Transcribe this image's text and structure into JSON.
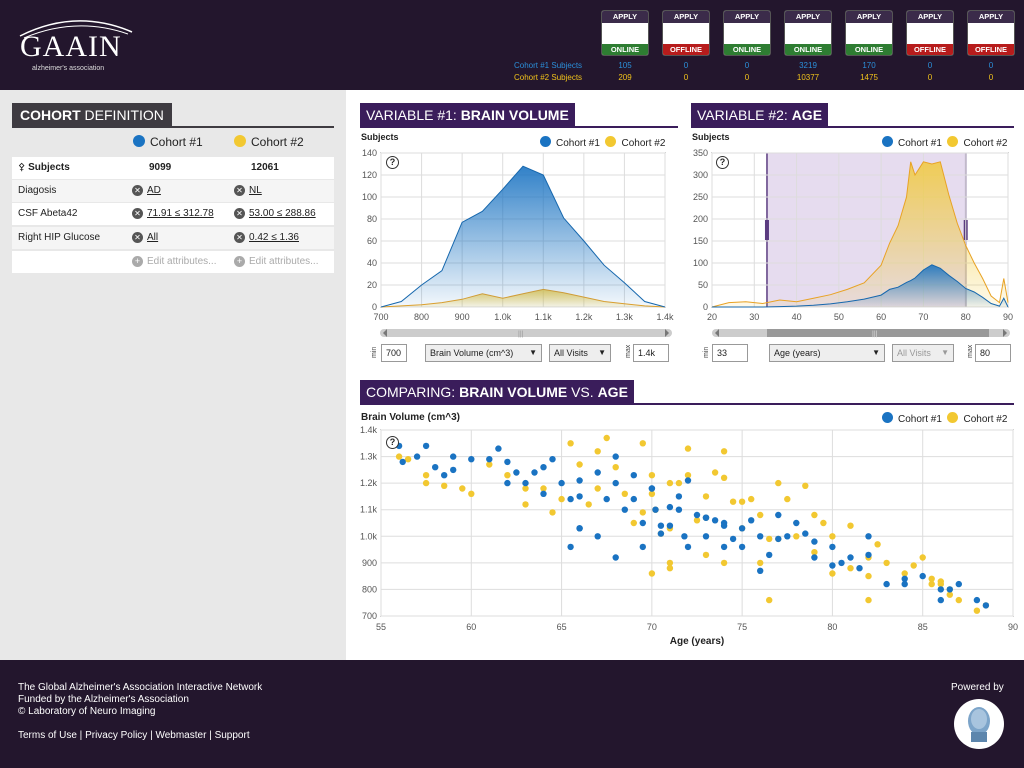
{
  "logo": {
    "title": "GAAIN",
    "sub": "alzheimer's association"
  },
  "databases": [
    {
      "apply": "APPLY",
      "status": "ONLINE",
      "online": true,
      "c1": "105",
      "c2": "209"
    },
    {
      "apply": "APPLY",
      "status": "OFFLINE",
      "online": false,
      "c1": "0",
      "c2": "0"
    },
    {
      "apply": "APPLY",
      "status": "ONLINE",
      "online": true,
      "c1": "0",
      "c2": "0"
    },
    {
      "apply": "APPLY",
      "status": "ONLINE",
      "online": true,
      "c1": "3219",
      "c2": "10377"
    },
    {
      "apply": "APPLY",
      "status": "ONLINE",
      "online": true,
      "c1": "170",
      "c2": "1475"
    },
    {
      "apply": "APPLY",
      "status": "OFFLINE",
      "online": false,
      "c1": "0",
      "c2": "0"
    },
    {
      "apply": "APPLY",
      "status": "OFFLINE",
      "online": false,
      "c1": "0",
      "c2": "0"
    }
  ],
  "header": {
    "c1_subjects": "Cohort #1 Subjects",
    "c2_subjects": "Cohort #2 Subjects"
  },
  "cohort_def": {
    "tab_bold": "COHORT",
    "tab_rest": " DEFINITION",
    "c1": "Cohort #1",
    "c2": "Cohort #2",
    "rows": [
      {
        "label": "Subjects",
        "v1": "9099",
        "v2": "12061"
      },
      {
        "label": "Diagosis",
        "v1": "AD",
        "v2": "NL"
      },
      {
        "label": "CSF Abeta42",
        "v1": "71.91 ≤ 312.78",
        "v2": "53.00 ≤ 288.86"
      },
      {
        "label": "Right HIP Glucose",
        "v1": "All",
        "v2": "0.42 ≤ 1.36"
      }
    ],
    "edit": "Edit attributes..."
  },
  "colors": {
    "c1": "#1a73c2",
    "c2": "#f2c831",
    "accent": "#3a1d5b"
  },
  "var1": {
    "tab_pre": "VARIABLE #1: ",
    "tab_bold": "BRAIN VOLUME",
    "ylabel": "Subjects",
    "c1": "Cohort #1",
    "c2": "Cohort #2",
    "min_lbl": "min",
    "max_lbl": "max",
    "min": "700",
    "max": "1.4k",
    "select": "Brain Volume (cm^3)",
    "visits": "All Visits",
    "xticks": [
      "700",
      "800",
      "900",
      "1.0k",
      "1.1k",
      "1.2k",
      "1.3k",
      "1.4k"
    ],
    "yticks": [
      "0",
      "20",
      "40",
      "60",
      "80",
      "100",
      "120",
      "140"
    ]
  },
  "var2": {
    "tab_pre": "VARIABLE #2: ",
    "tab_bold": "AGE",
    "ylabel": "Subjects",
    "c1": "Cohort #1",
    "c2": "Cohort #2",
    "min_lbl": "min",
    "max_lbl": "max",
    "min": "33",
    "max": "80",
    "select": "Age (years)",
    "visits": "All Visits",
    "xticks": [
      "20",
      "30",
      "40",
      "50",
      "60",
      "70",
      "80",
      "90"
    ],
    "yticks": [
      "0",
      "50",
      "100",
      "150",
      "200",
      "250",
      "300",
      "350"
    ]
  },
  "compare": {
    "tab_pre": "COMPARING: ",
    "tab_bold": "BRAIN VOLUME",
    "tab_mid": " VS. ",
    "tab_bold2": "AGE",
    "c1": "Cohort #1",
    "c2": "Cohort #2"
  },
  "chart_data": [
    {
      "type": "area",
      "title": "VARIABLE #1: BRAIN VOLUME",
      "ylabel": "Subjects",
      "xlim": [
        700,
        1400
      ],
      "ylim": [
        0,
        140
      ],
      "x": [
        700,
        750,
        800,
        850,
        900,
        950,
        1000,
        1050,
        1100,
        1150,
        1200,
        1250,
        1300,
        1350,
        1400
      ],
      "series": [
        {
          "name": "Cohort #1",
          "values": [
            0,
            5,
            20,
            33,
            77,
            87,
            107,
            128,
            120,
            81,
            60,
            38,
            22,
            5,
            0
          ]
        },
        {
          "name": "Cohort #2",
          "values": [
            0,
            1,
            2,
            4,
            7,
            12,
            8,
            12,
            16,
            13,
            9,
            5,
            3,
            1,
            0
          ]
        }
      ],
      "grid": true,
      "legend": "top-right"
    },
    {
      "type": "area",
      "title": "VARIABLE #2: AGE",
      "ylabel": "Subjects",
      "xlim": [
        20,
        90
      ],
      "ylim": [
        0,
        350
      ],
      "x": [
        20,
        24,
        28,
        32,
        36,
        40,
        44,
        48,
        52,
        56,
        60,
        62,
        64,
        66,
        67,
        68,
        70,
        72,
        74,
        76,
        78,
        80,
        82,
        84,
        86,
        88,
        89,
        90
      ],
      "series": [
        {
          "name": "Cohort #1",
          "values": [
            0,
            0,
            0,
            0,
            1,
            2,
            4,
            7,
            12,
            18,
            27,
            40,
            45,
            56,
            60,
            66,
            84,
            96,
            88,
            72,
            58,
            42,
            34,
            22,
            8,
            2,
            20,
            0
          ]
        },
        {
          "name": "Cohort #2",
          "values": [
            0,
            10,
            12,
            8,
            16,
            12,
            20,
            28,
            40,
            55,
            95,
            145,
            185,
            250,
            330,
            300,
            330,
            325,
            330,
            255,
            190,
            140,
            100,
            65,
            25,
            10,
            65,
            10
          ]
        }
      ],
      "range_selected": [
        33,
        80
      ],
      "grid": true,
      "legend": "top-right"
    },
    {
      "type": "scatter",
      "title": "COMPARING: BRAIN VOLUME VS. AGE",
      "xlabel": "Age (years)",
      "ylabel": "Brain Volume (cm^3)",
      "xlim": [
        55,
        90
      ],
      "ylim": [
        700,
        1400
      ],
      "series": [
        {
          "name": "Cohort #1",
          "points": [
            [
              56,
              1340
            ],
            [
              56.2,
              1280
            ],
            [
              57,
              1300
            ],
            [
              57.5,
              1340
            ],
            [
              58.5,
              1230
            ],
            [
              59,
              1250
            ],
            [
              59,
              1300
            ],
            [
              60,
              1290
            ],
            [
              61,
              1290
            ],
            [
              61.5,
              1330
            ],
            [
              62,
              1200
            ],
            [
              62.5,
              1240
            ],
            [
              63,
              1200
            ],
            [
              63.5,
              1240
            ],
            [
              64,
              1260
            ],
            [
              64.5,
              1290
            ],
            [
              65,
              1200
            ],
            [
              65.5,
              1140
            ],
            [
              66,
              1030
            ],
            [
              66,
              1210
            ],
            [
              67,
              1240
            ],
            [
              67.5,
              1140
            ],
            [
              68,
              1200
            ],
            [
              68.5,
              1100
            ],
            [
              69,
              1140
            ],
            [
              69,
              1230
            ],
            [
              69.5,
              1050
            ],
            [
              70,
              1180
            ],
            [
              70.2,
              1100
            ],
            [
              70.5,
              1010
            ],
            [
              71,
              1040
            ],
            [
              71,
              1110
            ],
            [
              71.5,
              1100
            ],
            [
              71.5,
              1150
            ],
            [
              72,
              1210
            ],
            [
              72.5,
              1080
            ],
            [
              73,
              1070
            ],
            [
              73,
              1000
            ],
            [
              73.5,
              1060
            ],
            [
              74,
              1050
            ],
            [
              74.5,
              990
            ],
            [
              75,
              960
            ],
            [
              75,
              1030
            ],
            [
              75.5,
              1060
            ],
            [
              76,
              1000
            ],
            [
              76.5,
              930
            ],
            [
              77,
              990
            ],
            [
              77.5,
              1000
            ],
            [
              78,
              1050
            ],
            [
              78.5,
              1010
            ],
            [
              79,
              980
            ],
            [
              79,
              920
            ],
            [
              80,
              960
            ],
            [
              80.5,
              900
            ],
            [
              81,
              920
            ],
            [
              81.5,
              880
            ],
            [
              82,
              930
            ],
            [
              82,
              1000
            ],
            [
              83,
              820
            ],
            [
              84,
              820
            ],
            [
              85,
              850
            ],
            [
              86,
              760
            ],
            [
              86.5,
              800
            ],
            [
              87,
              820
            ],
            [
              88,
              760
            ],
            [
              88.5,
              740
            ],
            [
              67,
              1000
            ],
            [
              69.5,
              960
            ],
            [
              72,
              960
            ],
            [
              65.5,
              960
            ],
            [
              66,
              1030
            ],
            [
              68,
              920
            ],
            [
              73,
              1070
            ],
            [
              74,
              960
            ],
            [
              76,
              870
            ],
            [
              80,
              890
            ],
            [
              84,
              840
            ],
            [
              86,
              800
            ],
            [
              62,
              1280
            ],
            [
              58,
              1260
            ],
            [
              64,
              1160
            ],
            [
              70,
              1180
            ],
            [
              71.8,
              1000
            ],
            [
              74,
              1040
            ],
            [
              77,
              1080
            ],
            [
              68,
              1300
            ],
            [
              66,
              1150
            ],
            [
              70.5,
              1040
            ]
          ]
        },
        {
          "name": "Cohort #2",
          "points": [
            [
              56,
              1300
            ],
            [
              56.5,
              1290
            ],
            [
              57.5,
              1230
            ],
            [
              57.5,
              1200
            ],
            [
              58.5,
              1190
            ],
            [
              59.5,
              1180
            ],
            [
              60,
              1160
            ],
            [
              61,
              1270
            ],
            [
              62,
              1230
            ],
            [
              63,
              1180
            ],
            [
              63,
              1120
            ],
            [
              64,
              1180
            ],
            [
              64.5,
              1090
            ],
            [
              65,
              1140
            ],
            [
              65.5,
              1350
            ],
            [
              66,
              1270
            ],
            [
              66.5,
              1120
            ],
            [
              67,
              1180
            ],
            [
              67.5,
              1370
            ],
            [
              68,
              1260
            ],
            [
              68.5,
              1160
            ],
            [
              69,
              1050
            ],
            [
              69.5,
              1090
            ],
            [
              70,
              1230
            ],
            [
              70,
              1160
            ],
            [
              70.2,
              1100
            ],
            [
              70.5,
              1010
            ],
            [
              71,
              1030
            ],
            [
              71,
              1200
            ],
            [
              71.5,
              1200
            ],
            [
              72,
              1230
            ],
            [
              72.5,
              1060
            ],
            [
              73,
              1150
            ],
            [
              73,
              1070
            ],
            [
              73.5,
              1240
            ],
            [
              74,
              1220
            ],
            [
              74.5,
              1130
            ],
            [
              75,
              1130
            ],
            [
              75,
              1030
            ],
            [
              75.5,
              1140
            ],
            [
              76,
              1080
            ],
            [
              76.5,
              990
            ],
            [
              77,
              1200
            ],
            [
              77,
              990
            ],
            [
              77.5,
              1140
            ],
            [
              78,
              1000
            ],
            [
              78.5,
              1190
            ],
            [
              79,
              1080
            ],
            [
              79.5,
              1050
            ],
            [
              80,
              1000
            ],
            [
              81,
              1040
            ],
            [
              82,
              920
            ],
            [
              82.5,
              970
            ],
            [
              83,
              900
            ],
            [
              84,
              860
            ],
            [
              84.5,
              890
            ],
            [
              85,
              920
            ],
            [
              85.5,
              820
            ],
            [
              86,
              830
            ],
            [
              86.5,
              780
            ],
            [
              87,
              760
            ],
            [
              88,
              720
            ],
            [
              88.5,
              740
            ],
            [
              76,
              900
            ],
            [
              74,
              900
            ],
            [
              70,
              860
            ],
            [
              71,
              880
            ],
            [
              73,
              930
            ],
            [
              79,
              940
            ],
            [
              80,
              860
            ],
            [
              81,
              880
            ],
            [
              82,
              850
            ],
            [
              76.5,
              760
            ],
            [
              71,
              900
            ],
            [
              72,
              1330
            ],
            [
              69.5,
              1350
            ],
            [
              67,
              1320
            ],
            [
              74,
              1320
            ],
            [
              86.5,
              800
            ],
            [
              85.5,
              840
            ],
            [
              86,
              820
            ],
            [
              82,
              760
            ]
          ]
        }
      ],
      "grid": true,
      "legend": "top-right"
    }
  ],
  "footer": {
    "line1": "The Global Alzheimer's Association Interactive Network",
    "line2": "Funded by the Alzheimer's Association",
    "line3": "© Laboratory of Neuro Imaging",
    "links": [
      "Terms of Use",
      "Privacy Policy",
      "Webmaster",
      "Support"
    ],
    "powered": "Powered by"
  }
}
